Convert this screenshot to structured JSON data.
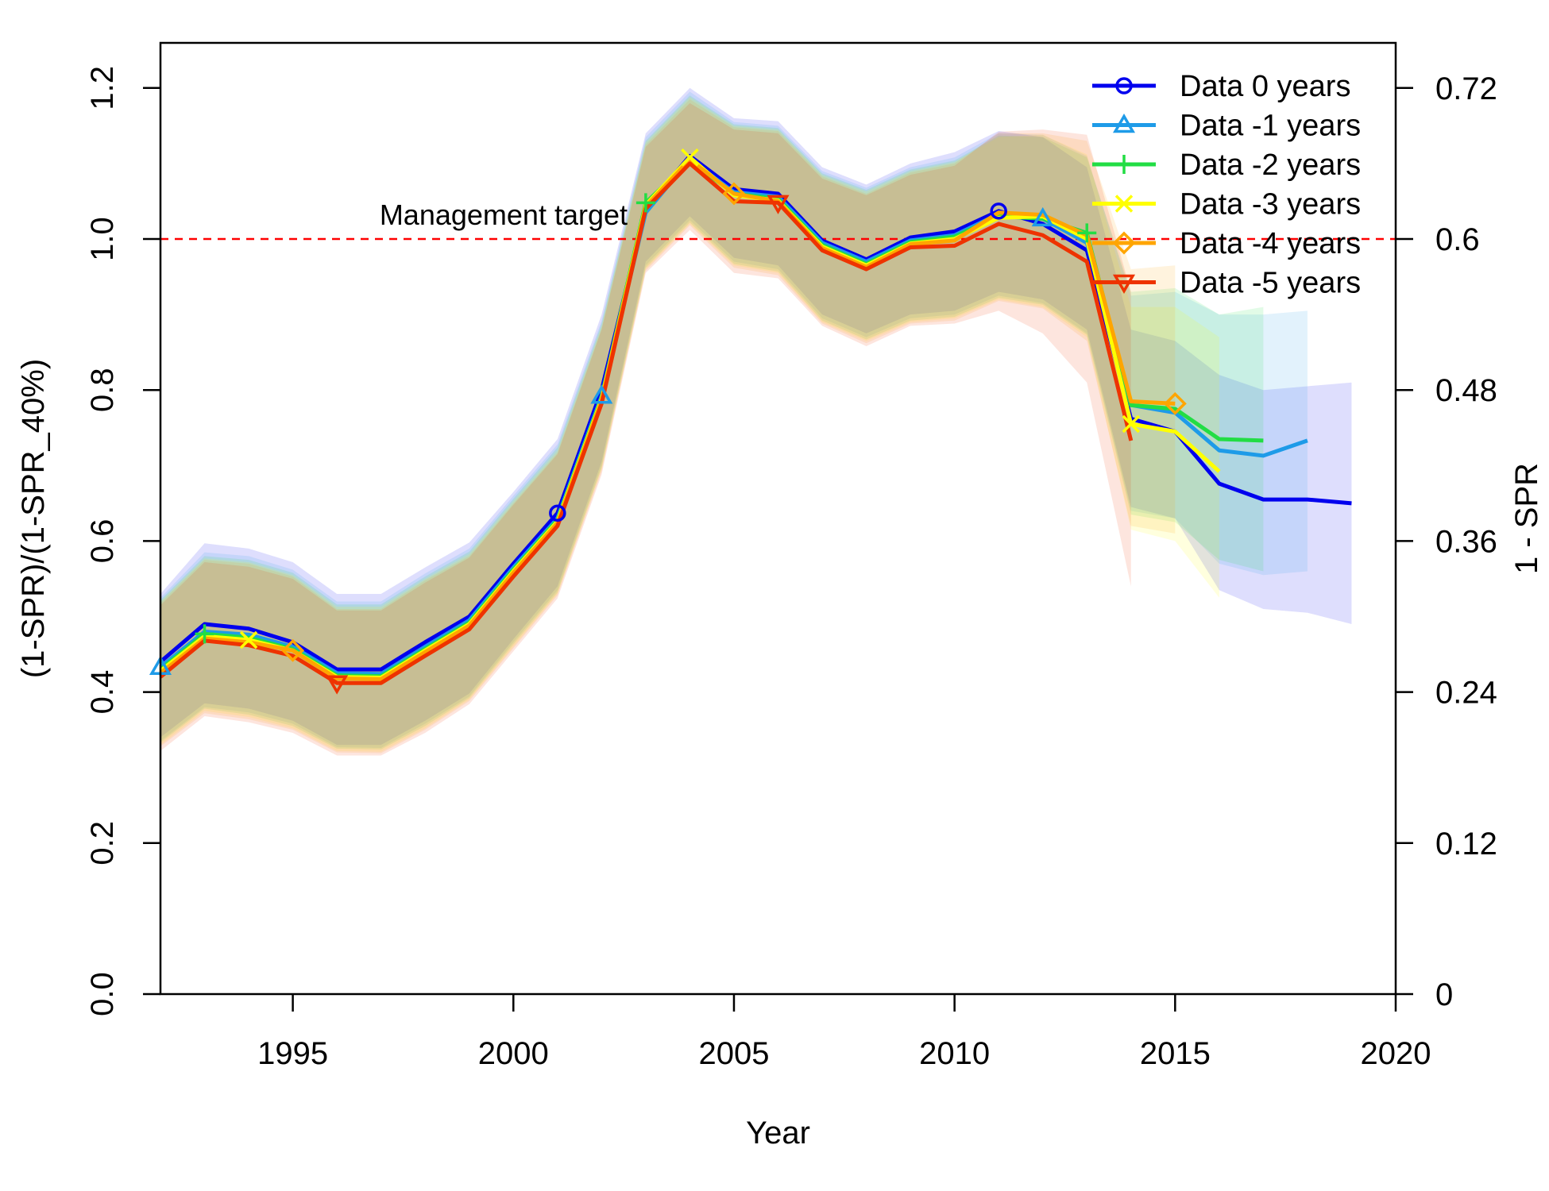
{
  "chart_data": {
    "type": "line",
    "xlabel": "Year",
    "ylabel": "(1-SPR)/(1-SPR_40%)",
    "ylabel_right": "1 - SPR",
    "xlim": [
      1992,
      2020
    ],
    "ylim": [
      0,
      1.2
    ],
    "x_ticks": [
      1995,
      2000,
      2005,
      2010,
      2015,
      2020
    ],
    "y_ticks": [
      "0.0",
      "0.2",
      "0.4",
      "0.6",
      "0.8",
      "1.0",
      "1.2"
    ],
    "y_right_ticks": [
      "0",
      "0.12",
      "0.24",
      "0.36",
      "0.48",
      "0.6",
      "0.72"
    ],
    "reference_line": {
      "y": 1.0,
      "label": "Management target",
      "color": "#ff0000",
      "style": "dashed"
    },
    "legend_position": "top-right",
    "series": [
      {
        "name": "Data 0 years",
        "color": "#0000ee",
        "marker": "circle",
        "marker_years": [
          2001,
          2011
        ],
        "x": [
          1992,
          1993,
          1994,
          1995,
          1996,
          1997,
          1998,
          1999,
          2000,
          2001,
          2002,
          2003,
          2004,
          2005,
          2006,
          2007,
          2008,
          2009,
          2010,
          2011,
          2012,
          2013,
          2014,
          2015,
          2016,
          2017,
          2018,
          2019
        ],
        "values": [
          0.44,
          0.49,
          0.484,
          0.466,
          0.43,
          0.43,
          0.466,
          0.5,
          0.57,
          0.637,
          0.8,
          1.04,
          1.11,
          1.066,
          1.06,
          0.998,
          0.973,
          1.002,
          1.01,
          1.037,
          1.02,
          0.985,
          0.762,
          0.745,
          0.676,
          0.655,
          0.655,
          0.65
        ],
        "lower": [
          0.34,
          0.385,
          0.378,
          0.362,
          0.33,
          0.33,
          0.362,
          0.398,
          0.47,
          0.54,
          0.705,
          0.97,
          1.03,
          0.975,
          0.965,
          0.9,
          0.875,
          0.9,
          0.905,
          0.93,
          0.92,
          0.88,
          0.645,
          0.63,
          0.535,
          0.51,
          0.505,
          0.49
        ],
        "upper": [
          0.53,
          0.597,
          0.59,
          0.572,
          0.53,
          0.53,
          0.565,
          0.598,
          0.665,
          0.735,
          0.9,
          1.14,
          1.2,
          1.16,
          1.156,
          1.095,
          1.072,
          1.1,
          1.115,
          1.143,
          1.135,
          1.095,
          0.88,
          0.865,
          0.82,
          0.8,
          0.805,
          0.81
        ]
      },
      {
        "name": "Data -1 years",
        "color": "#1e9be8",
        "marker": "triangle",
        "marker_years": [
          1992,
          2002,
          2012
        ],
        "x": [
          1992,
          1993,
          1994,
          1995,
          1996,
          1997,
          1998,
          1999,
          2000,
          2001,
          2002,
          2003,
          2004,
          2005,
          2006,
          2007,
          2008,
          2009,
          2010,
          2011,
          2012,
          2013,
          2014,
          2015,
          2016,
          2017,
          2018
        ],
        "values": [
          0.433,
          0.48,
          0.476,
          0.46,
          0.425,
          0.424,
          0.46,
          0.495,
          0.565,
          0.63,
          0.792,
          1.035,
          1.105,
          1.062,
          1.056,
          0.995,
          0.97,
          0.998,
          1.005,
          1.033,
          1.027,
          0.995,
          0.78,
          0.77,
          0.72,
          0.713,
          0.733
        ],
        "lower": [
          0.335,
          0.38,
          0.373,
          0.358,
          0.327,
          0.326,
          0.358,
          0.394,
          0.466,
          0.535,
          0.7,
          0.965,
          1.025,
          0.97,
          0.96,
          0.895,
          0.87,
          0.895,
          0.9,
          0.925,
          0.915,
          0.875,
          0.64,
          0.63,
          0.57,
          0.555,
          0.56
        ],
        "upper": [
          0.525,
          0.585,
          0.58,
          0.562,
          0.52,
          0.52,
          0.557,
          0.59,
          0.66,
          0.728,
          0.892,
          1.135,
          1.195,
          1.155,
          1.15,
          1.09,
          1.068,
          1.095,
          1.108,
          1.14,
          1.138,
          1.11,
          0.925,
          0.93,
          0.9,
          0.9,
          0.905
        ]
      },
      {
        "name": "Data -2 years",
        "color": "#22dd44",
        "marker": "plus",
        "marker_years": [
          1993,
          2003,
          2013
        ],
        "x": [
          1992,
          1993,
          1994,
          1995,
          1996,
          1997,
          1998,
          1999,
          2000,
          2001,
          2002,
          2003,
          2004,
          2005,
          2006,
          2007,
          2008,
          2009,
          2010,
          2011,
          2012,
          2013,
          2014,
          2015,
          2016,
          2017
        ],
        "values": [
          0.43,
          0.477,
          0.472,
          0.457,
          0.422,
          0.421,
          0.457,
          0.492,
          0.562,
          0.628,
          0.79,
          1.048,
          1.103,
          1.06,
          1.053,
          0.992,
          0.967,
          0.996,
          1.003,
          1.03,
          1.027,
          1.008,
          0.78,
          0.775,
          0.735,
          0.733
        ],
        "lower": [
          0.333,
          0.378,
          0.37,
          0.355,
          0.325,
          0.324,
          0.355,
          0.392,
          0.463,
          0.532,
          0.697,
          0.962,
          1.022,
          0.967,
          0.957,
          0.892,
          0.867,
          0.892,
          0.897,
          0.922,
          0.913,
          0.873,
          0.635,
          0.625,
          0.575,
          0.56
        ],
        "upper": [
          0.522,
          0.58,
          0.575,
          0.558,
          0.516,
          0.516,
          0.553,
          0.586,
          0.656,
          0.724,
          0.888,
          1.13,
          1.19,
          1.152,
          1.147,
          1.087,
          1.065,
          1.092,
          1.104,
          1.137,
          1.135,
          1.108,
          0.93,
          0.935,
          0.9,
          0.91
        ]
      },
      {
        "name": "Data -3 years",
        "color": "#ffff00",
        "marker": "cross",
        "marker_years": [
          1994,
          2004,
          2014
        ],
        "x": [
          1992,
          1993,
          1994,
          1995,
          1996,
          1997,
          1998,
          1999,
          2000,
          2001,
          2002,
          2003,
          2004,
          2005,
          2006,
          2007,
          2008,
          2009,
          2010,
          2011,
          2012,
          2013,
          2014,
          2015,
          2016
        ],
        "values": [
          0.428,
          0.474,
          0.469,
          0.455,
          0.42,
          0.419,
          0.455,
          0.49,
          0.56,
          0.626,
          0.788,
          1.045,
          1.108,
          1.058,
          1.051,
          0.99,
          0.965,
          0.994,
          1.0,
          1.028,
          1.03,
          1.0,
          0.755,
          0.745,
          0.692
        ],
        "lower": [
          0.33,
          0.375,
          0.367,
          0.352,
          0.322,
          0.321,
          0.352,
          0.39,
          0.46,
          0.53,
          0.695,
          0.96,
          1.02,
          0.965,
          0.955,
          0.89,
          0.865,
          0.89,
          0.895,
          0.92,
          0.91,
          0.87,
          0.615,
          0.6,
          0.525
        ],
        "upper": [
          0.52,
          0.577,
          0.572,
          0.555,
          0.513,
          0.513,
          0.55,
          0.583,
          0.653,
          0.72,
          0.885,
          1.128,
          1.188,
          1.15,
          1.145,
          1.085,
          1.063,
          1.09,
          1.102,
          1.135,
          1.138,
          1.112,
          0.91,
          0.91,
          0.87
        ]
      },
      {
        "name": "Data -4 years",
        "color": "#ffa500",
        "marker": "diamond",
        "marker_years": [
          1995,
          2005,
          2015
        ],
        "x": [
          1992,
          1993,
          1994,
          1995,
          1996,
          1997,
          1998,
          1999,
          2000,
          2001,
          2002,
          2003,
          2004,
          2005,
          2006,
          2007,
          2008,
          2009,
          2010,
          2011,
          2012,
          2013,
          2014,
          2015
        ],
        "values": [
          0.425,
          0.471,
          0.466,
          0.455,
          0.418,
          0.417,
          0.453,
          0.488,
          0.558,
          0.624,
          0.786,
          1.043,
          1.105,
          1.06,
          1.05,
          0.988,
          0.963,
          0.993,
          0.998,
          1.035,
          1.032,
          1.005,
          0.785,
          0.782
        ],
        "lower": [
          0.328,
          0.372,
          0.364,
          0.35,
          0.32,
          0.319,
          0.35,
          0.388,
          0.458,
          0.528,
          0.692,
          0.958,
          1.018,
          0.962,
          0.952,
          0.888,
          0.862,
          0.888,
          0.892,
          0.918,
          0.908,
          0.865,
          0.62,
          0.61
        ],
        "upper": [
          0.518,
          0.575,
          0.57,
          0.553,
          0.51,
          0.51,
          0.548,
          0.58,
          0.65,
          0.717,
          0.882,
          1.125,
          1.185,
          1.148,
          1.143,
          1.083,
          1.06,
          1.088,
          1.1,
          1.14,
          1.14,
          1.13,
          0.96,
          0.965
        ]
      },
      {
        "name": "Data -5 years",
        "color": "#ee3300",
        "marker": "triangle-down",
        "marker_years": [
          1996,
          2006
        ],
        "x": [
          1992,
          1993,
          1994,
          1995,
          1996,
          1997,
          1998,
          1999,
          2000,
          2001,
          2002,
          2003,
          2004,
          2005,
          2006,
          2007,
          2008,
          2009,
          2010,
          2011,
          2012,
          2013,
          2014
        ],
        "values": [
          0.42,
          0.468,
          0.462,
          0.448,
          0.412,
          0.412,
          0.448,
          0.483,
          0.553,
          0.62,
          0.782,
          1.04,
          1.1,
          1.05,
          1.048,
          0.985,
          0.96,
          0.989,
          0.991,
          1.02,
          1.005,
          0.97,
          0.733
        ],
        "lower": [
          0.322,
          0.368,
          0.36,
          0.346,
          0.316,
          0.316,
          0.346,
          0.384,
          0.454,
          0.524,
          0.688,
          0.955,
          1.012,
          0.955,
          0.948,
          0.885,
          0.858,
          0.885,
          0.888,
          0.905,
          0.875,
          0.81,
          0.54
        ],
        "upper": [
          0.515,
          0.572,
          0.566,
          0.55,
          0.508,
          0.508,
          0.545,
          0.578,
          0.648,
          0.715,
          0.88,
          1.122,
          1.18,
          1.145,
          1.14,
          1.08,
          1.058,
          1.085,
          1.097,
          1.142,
          1.145,
          1.138,
          0.93
        ]
      }
    ]
  }
}
